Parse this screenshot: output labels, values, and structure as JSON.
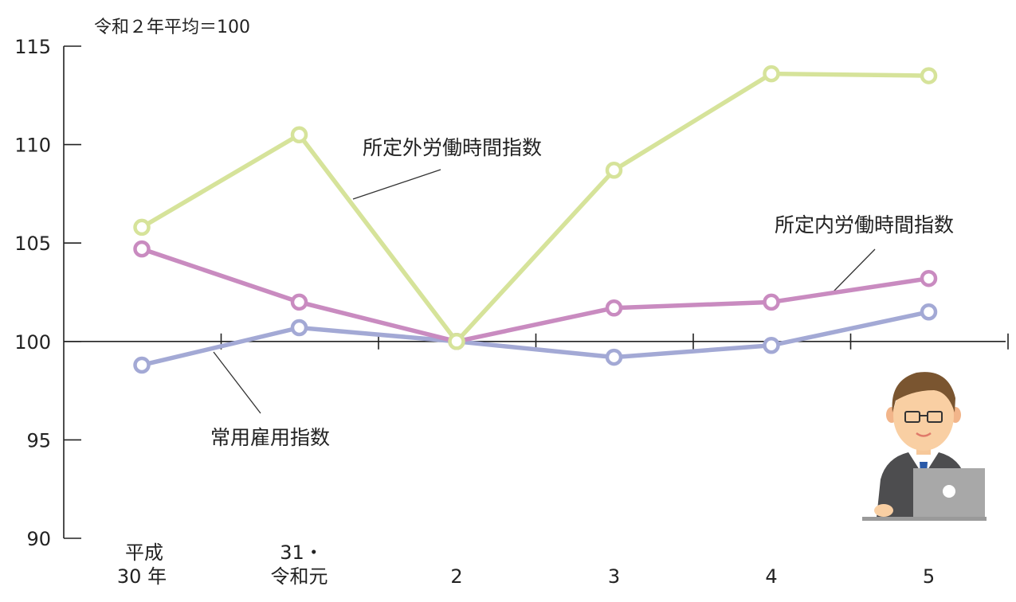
{
  "chart_data": {
    "type": "line",
    "title": "",
    "note": "令和２年平均＝100",
    "xlabel": "",
    "ylabel": "",
    "ylim": [
      90,
      115
    ],
    "yticks": [
      "115",
      "110",
      "105",
      "100",
      "95",
      "90"
    ],
    "categories": [
      {
        "line1": "平成",
        "line2": "30 年"
      },
      {
        "line1": "31・",
        "line2": "令和元"
      },
      {
        "line1": "",
        "line2": "2"
      },
      {
        "line1": "",
        "line2": "3"
      },
      {
        "line1": "",
        "line2": "4"
      },
      {
        "line1": "",
        "line2": "5"
      }
    ],
    "grid": false,
    "series": [
      {
        "name": "所定外労働時間指数",
        "color": "#d6e39a",
        "values": [
          105.8,
          110.5,
          100.0,
          108.7,
          113.6,
          113.5
        ]
      },
      {
        "name": "所定内労働時間指数",
        "color": "#c98bc0",
        "values": [
          104.7,
          102.0,
          100.0,
          101.7,
          102.0,
          103.2
        ]
      },
      {
        "name": "常用雇用指数",
        "color": "#a3a9d5",
        "values": [
          98.8,
          100.7,
          100.0,
          99.2,
          99.8,
          101.5
        ]
      }
    ]
  },
  "illustration": {
    "icon": "office-worker-laptop-icon"
  }
}
